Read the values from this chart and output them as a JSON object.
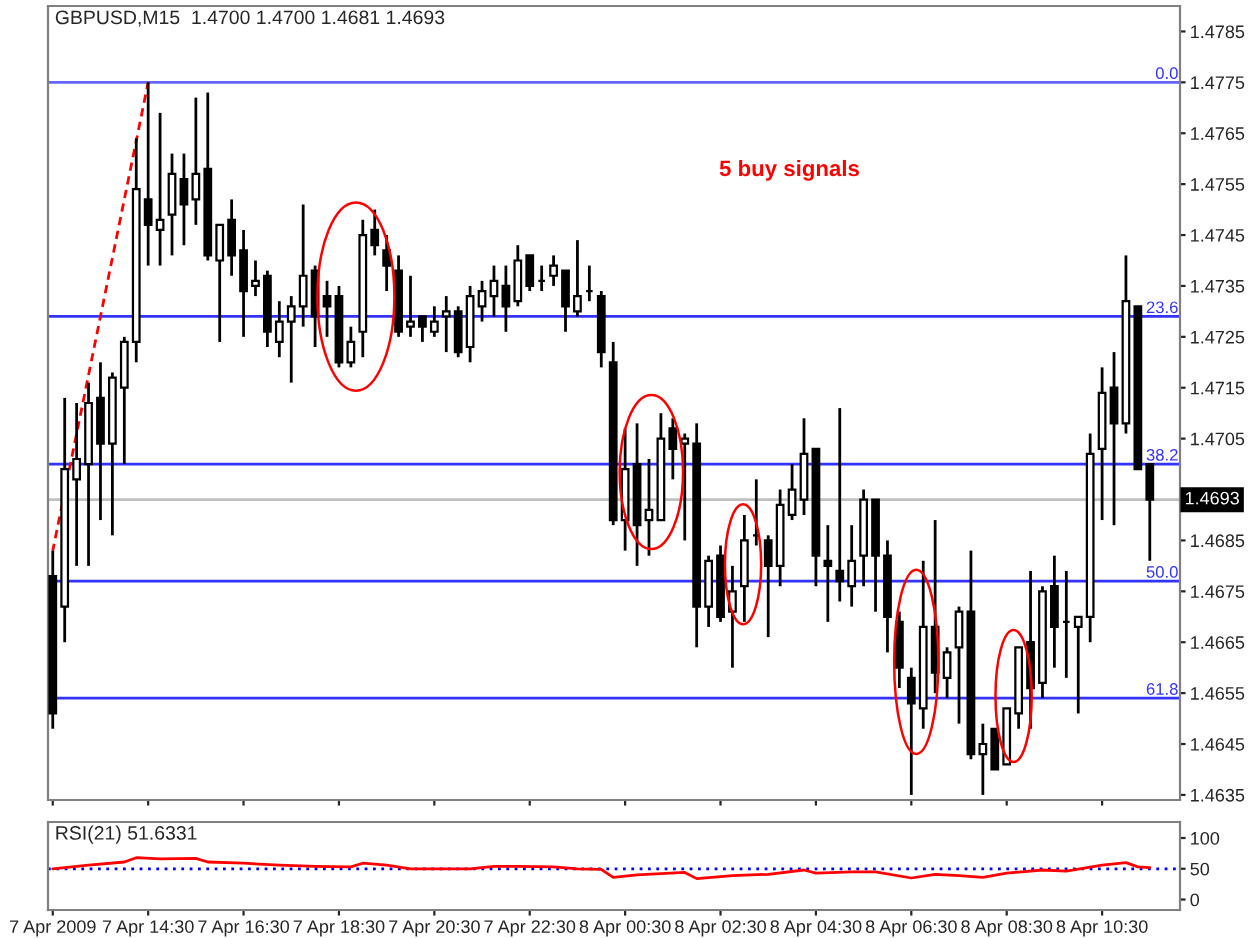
{
  "chart_data": [
    {
      "type": "candlestick",
      "title": "GBPUSD,M15  1.4700 1.4700 1.4681 1.4693",
      "x": [
        "2009-04-07T12:30",
        "2009-04-07T12:45",
        "2009-04-07T13:00",
        "2009-04-07T13:15",
        "2009-04-07T13:30",
        "2009-04-07T13:45",
        "2009-04-07T14:00",
        "2009-04-07T14:15",
        "2009-04-07T14:30",
        "2009-04-07T14:45",
        "2009-04-07T15:00",
        "2009-04-07T15:15",
        "2009-04-07T15:30",
        "2009-04-07T15:45",
        "2009-04-07T16:00",
        "2009-04-07T16:15",
        "2009-04-07T16:30",
        "2009-04-07T16:45",
        "2009-04-07T17:00",
        "2009-04-07T17:15",
        "2009-04-07T17:30",
        "2009-04-07T17:45",
        "2009-04-07T18:00",
        "2009-04-07T18:15",
        "2009-04-07T18:30",
        "2009-04-07T18:45",
        "2009-04-07T19:00",
        "2009-04-07T19:15",
        "2009-04-07T19:30",
        "2009-04-07T19:45",
        "2009-04-07T20:00",
        "2009-04-07T20:15",
        "2009-04-07T20:30",
        "2009-04-07T20:45",
        "2009-04-07T21:00",
        "2009-04-07T21:15",
        "2009-04-07T21:30",
        "2009-04-07T21:45",
        "2009-04-07T22:00",
        "2009-04-07T22:15",
        "2009-04-07T22:30",
        "2009-04-07T22:45",
        "2009-04-07T23:00",
        "2009-04-07T23:15",
        "2009-04-07T23:30",
        "2009-04-07T23:45",
        "2009-04-08T00:00",
        "2009-04-08T00:15",
        "2009-04-08T00:30",
        "2009-04-08T00:45",
        "2009-04-08T01:00",
        "2009-04-08T01:15",
        "2009-04-08T01:30",
        "2009-04-08T01:45",
        "2009-04-08T02:00",
        "2009-04-08T02:15",
        "2009-04-08T02:30",
        "2009-04-08T02:45",
        "2009-04-08T03:00",
        "2009-04-08T03:15",
        "2009-04-08T03:30",
        "2009-04-08T03:45",
        "2009-04-08T04:00",
        "2009-04-08T04:15",
        "2009-04-08T04:30",
        "2009-04-08T04:45",
        "2009-04-08T05:00",
        "2009-04-08T05:15",
        "2009-04-08T05:30",
        "2009-04-08T05:45",
        "2009-04-08T06:00",
        "2009-04-08T06:15",
        "2009-04-08T06:30",
        "2009-04-08T06:45",
        "2009-04-08T07:00",
        "2009-04-08T07:15",
        "2009-04-08T07:30",
        "2009-04-08T07:45",
        "2009-04-08T08:00",
        "2009-04-08T08:15",
        "2009-04-08T08:30",
        "2009-04-08T08:45",
        "2009-04-08T09:00",
        "2009-04-08T09:15",
        "2009-04-08T09:30",
        "2009-04-08T09:45",
        "2009-04-08T10:00",
        "2009-04-08T10:15",
        "2009-04-08T10:30",
        "2009-04-08T10:45",
        "2009-04-08T11:00",
        "2009-04-08T11:15",
        "2009-04-08T11:30"
      ],
      "ohlc": [
        [
          1.4678,
          1.4683,
          1.4648,
          1.4651
        ],
        [
          1.4672,
          1.4713,
          1.4665,
          1.4699
        ],
        [
          1.4697,
          1.4712,
          1.468,
          1.4701
        ],
        [
          1.47,
          1.4716,
          1.468,
          1.4712
        ],
        [
          1.4713,
          1.472,
          1.4689,
          1.4704
        ],
        [
          1.4704,
          1.4718,
          1.4686,
          1.4717
        ],
        [
          1.4715,
          1.4725,
          1.47,
          1.4724
        ],
        [
          1.4724,
          1.4764,
          1.472,
          1.4754
        ],
        [
          1.4752,
          1.4775,
          1.4739,
          1.4747
        ],
        [
          1.4746,
          1.4769,
          1.4739,
          1.4748
        ],
        [
          1.4749,
          1.4761,
          1.4741,
          1.4757
        ],
        [
          1.4756,
          1.4761,
          1.4743,
          1.4751
        ],
        [
          1.4752,
          1.4772,
          1.4747,
          1.4757
        ],
        [
          1.4758,
          1.4773,
          1.474,
          1.4741
        ],
        [
          1.474,
          1.4747,
          1.4724,
          1.4747
        ],
        [
          1.4748,
          1.4752,
          1.4737,
          1.4741
        ],
        [
          1.4742,
          1.4746,
          1.4725,
          1.4734
        ],
        [
          1.4735,
          1.474,
          1.4733,
          1.4736
        ],
        [
          1.4737,
          1.4738,
          1.4723,
          1.4726
        ],
        [
          1.4724,
          1.4732,
          1.4721,
          1.4728
        ],
        [
          1.4728,
          1.4733,
          1.4716,
          1.4731
        ],
        [
          1.4731,
          1.4751,
          1.4727,
          1.4737
        ],
        [
          1.4738,
          1.4739,
          1.4723,
          1.4729
        ],
        [
          1.4733,
          1.4736,
          1.4725,
          1.4731
        ],
        [
          1.4733,
          1.4735,
          1.4719,
          1.472
        ],
        [
          1.472,
          1.4727,
          1.4719,
          1.4724
        ],
        [
          1.4726,
          1.4748,
          1.4721,
          1.4745
        ],
        [
          1.4746,
          1.475,
          1.4741,
          1.4743
        ],
        [
          1.4742,
          1.4745,
          1.4734,
          1.4739
        ],
        [
          1.4738,
          1.4741,
          1.4725,
          1.4726
        ],
        [
          1.4727,
          1.4737,
          1.4725,
          1.4728
        ],
        [
          1.4729,
          1.4729,
          1.4724,
          1.4727
        ],
        [
          1.4726,
          1.4731,
          1.4725,
          1.4728
        ],
        [
          1.4729,
          1.4733,
          1.4722,
          1.473
        ],
        [
          1.473,
          1.4731,
          1.4721,
          1.4722
        ],
        [
          1.4723,
          1.4735,
          1.472,
          1.4733
        ],
        [
          1.4731,
          1.4736,
          1.4728,
          1.4734
        ],
        [
          1.4733,
          1.4739,
          1.4729,
          1.4736
        ],
        [
          1.4735,
          1.4739,
          1.4726,
          1.4731
        ],
        [
          1.4732,
          1.4743,
          1.4731,
          1.474
        ],
        [
          1.4741,
          1.4741,
          1.4734,
          1.4735
        ],
        [
          1.4736,
          1.4739,
          1.4734,
          1.4736
        ],
        [
          1.4737,
          1.4741,
          1.4735,
          1.4739
        ],
        [
          1.4738,
          1.4738,
          1.4726,
          1.4731
        ],
        [
          1.473,
          1.4744,
          1.4729,
          1.4733
        ],
        [
          1.4734,
          1.4739,
          1.4732,
          1.4734
        ],
        [
          1.4733,
          1.4734,
          1.4719,
          1.4722
        ],
        [
          1.472,
          1.4724,
          1.4688,
          1.4689
        ],
        [
          1.4689,
          1.4707,
          1.4683,
          1.4699
        ],
        [
          1.47,
          1.4708,
          1.468,
          1.4688
        ],
        [
          1.4689,
          1.4701,
          1.4682,
          1.4691
        ],
        [
          1.4689,
          1.471,
          1.4689,
          1.4705
        ],
        [
          1.4707,
          1.4709,
          1.4697,
          1.4703
        ],
        [
          1.4704,
          1.4706,
          1.4685,
          1.4705
        ],
        [
          1.4704,
          1.4708,
          1.4664,
          1.4672
        ],
        [
          1.4672,
          1.4682,
          1.4668,
          1.4681
        ],
        [
          1.4682,
          1.4684,
          1.4669,
          1.467
        ],
        [
          1.4671,
          1.468,
          1.466,
          1.4675
        ],
        [
          1.4676,
          1.469,
          1.4669,
          1.4685
        ],
        [
          1.4686,
          1.4697,
          1.4684,
          1.4686
        ],
        [
          1.4685,
          1.4686,
          1.4666,
          1.468
        ],
        [
          1.468,
          1.4695,
          1.4676,
          1.4692
        ],
        [
          1.469,
          1.47,
          1.4689,
          1.4695
        ],
        [
          1.4693,
          1.4709,
          1.469,
          1.4702
        ],
        [
          1.4703,
          1.4703,
          1.4676,
          1.4682
        ],
        [
          1.4681,
          1.4688,
          1.4669,
          1.468
        ],
        [
          1.4679,
          1.4711,
          1.4673,
          1.4677
        ],
        [
          1.4676,
          1.4688,
          1.4672,
          1.4681
        ],
        [
          1.4682,
          1.4695,
          1.4676,
          1.4693
        ],
        [
          1.4693,
          1.4693,
          1.4671,
          1.4682
        ],
        [
          1.4682,
          1.4685,
          1.4663,
          1.467
        ],
        [
          1.4669,
          1.4671,
          1.4656,
          1.466
        ],
        [
          1.4658,
          1.466,
          1.4635,
          1.4653
        ],
        [
          1.4652,
          1.4681,
          1.4648,
          1.4668
        ],
        [
          1.4668,
          1.4689,
          1.4655,
          1.4659
        ],
        [
          1.4658,
          1.4664,
          1.4654,
          1.4663
        ],
        [
          1.4664,
          1.4672,
          1.4649,
          1.4671
        ],
        [
          1.4671,
          1.4683,
          1.4642,
          1.4643
        ],
        [
          1.4643,
          1.4649,
          1.4635,
          1.4645
        ],
        [
          1.4648,
          1.4648,
          1.464,
          1.464
        ],
        [
          1.4641,
          1.4652,
          1.4641,
          1.4652
        ],
        [
          1.4651,
          1.4664,
          1.4648,
          1.4664
        ],
        [
          1.4665,
          1.4679,
          1.4648,
          1.4656
        ],
        [
          1.4657,
          1.4676,
          1.4654,
          1.4675
        ],
        [
          1.4676,
          1.4682,
          1.466,
          1.4668
        ],
        [
          1.4669,
          1.4679,
          1.4658,
          1.4669
        ],
        [
          1.4668,
          1.467,
          1.4651,
          1.467
        ],
        [
          1.467,
          1.4706,
          1.4665,
          1.4702
        ],
        [
          1.4703,
          1.4719,
          1.4689,
          1.4714
        ],
        [
          1.4715,
          1.4722,
          1.4688,
          1.4708
        ],
        [
          1.4708,
          1.4741,
          1.4706,
          1.4732
        ],
        [
          1.4731,
          1.4731,
          1.4699,
          1.4699
        ],
        [
          1.47,
          1.47,
          1.4681,
          1.4693
        ]
      ],
      "series": [
        {
          "type": "line",
          "color": "#ff0000",
          "line_style": "dashed",
          "x": [
            "2009-04-07T12:30",
            "2009-04-07T14:30"
          ],
          "values": [
            1.4683,
            1.4775
          ]
        }
      ],
      "ref_lines": [
        {
          "axis": "y",
          "value": 1.4775,
          "color": "#6666ff"
        },
        {
          "axis": "y",
          "value": 1.4729,
          "color": "#3333ff"
        },
        {
          "axis": "y",
          "value": 1.47,
          "color": "#3333ff"
        },
        {
          "axis": "y",
          "value": 1.4677,
          "color": "#3333ff"
        },
        {
          "axis": "y",
          "value": 1.4654,
          "color": "#3333ff"
        },
        {
          "axis": "y",
          "value": 1.4693,
          "label": "1.4693",
          "color": "#c0c0c0"
        }
      ],
      "annotations": [
        "5 buy signals",
        {
          "text": "0.0",
          "x": "2009-04-08T12:06",
          "y": 1.4775
        },
        {
          "text": "23.6",
          "x": "2009-04-08T12:06",
          "y": 1.4729
        },
        {
          "text": "38.2",
          "x": "2009-04-08T12:06",
          "y": 1.47
        },
        {
          "text": "50.0",
          "x": "2009-04-08T12:06",
          "y": 1.4677
        },
        {
          "text": "61.8",
          "x": "2009-04-08T12:06",
          "y": 1.4654
        }
      ],
      "xlim": [
        "2009-04-07T12:24",
        "2009-04-08T12:08"
      ],
      "xticks": [
        {
          "value": "2009-04-07T12:30",
          "label": null
        },
        {
          "value": "2009-04-07T14:30",
          "label": null
        },
        {
          "value": "2009-04-07T16:30",
          "label": null
        },
        {
          "value": "2009-04-07T18:30",
          "label": null
        },
        {
          "value": "2009-04-07T20:30",
          "label": null
        },
        {
          "value": "2009-04-07T22:30",
          "label": null
        },
        {
          "value": "2009-04-08T00:30",
          "label": null
        },
        {
          "value": "2009-04-08T02:30",
          "label": null
        },
        {
          "value": "2009-04-08T04:30",
          "label": null
        },
        {
          "value": "2009-04-08T06:30",
          "label": null
        },
        {
          "value": "2009-04-08T08:30",
          "label": null
        },
        {
          "value": "2009-04-08T10:30",
          "label": null
        }
      ],
      "ylim": [
        1.4634,
        1.479
      ],
      "yticks": [
        1.4635,
        1.4645,
        1.4655,
        1.4665,
        1.4675,
        1.4685,
        {
          "value": 1.4695,
          "label": null
        },
        1.4705,
        1.4715,
        1.4725,
        1.4735,
        1.4745,
        1.4755,
        1.4765,
        1.4775,
        1.4785
      ],
      "tick_labels": "y"
    },
    {
      "type": "line",
      "title": "RSI(21) 51.6331",
      "series": [
        {
          "color": "#ff0000",
          "x": [
            "2009-04-07T12:30",
            "2009-04-07T13:15",
            "2009-04-07T14:00",
            "2009-04-07T14:15",
            "2009-04-07T14:45",
            "2009-04-07T15:30",
            "2009-04-07T15:45",
            "2009-04-07T16:30",
            "2009-04-07T17:15",
            "2009-04-07T18:00",
            "2009-04-07T18:45",
            "2009-04-07T19:00",
            "2009-04-07T19:30",
            "2009-04-07T20:00",
            "2009-04-07T21:15",
            "2009-04-07T21:45",
            "2009-04-07T22:15",
            "2009-04-07T23:00",
            "2009-04-07T23:30",
            "2009-04-08T00:00",
            "2009-04-08T00:15",
            "2009-04-08T00:45",
            "2009-04-08T01:45",
            "2009-04-08T02:00",
            "2009-04-08T02:45",
            "2009-04-08T03:30",
            "2009-04-08T04:15",
            "2009-04-08T04:30",
            "2009-04-08T05:15",
            "2009-04-08T05:45",
            "2009-04-08T06:30",
            "2009-04-08T07:00",
            "2009-04-08T07:30",
            "2009-04-08T08:00",
            "2009-04-08T08:30",
            "2009-04-08T09:15",
            "2009-04-08T09:45",
            "2009-04-08T10:30",
            "2009-04-08T11:00",
            "2009-04-08T11:15",
            "2009-04-08T11:30"
          ],
          "values": [
            50,
            56,
            61,
            68,
            66,
            67,
            61,
            59,
            56,
            54,
            53,
            59,
            56,
            50,
            50,
            54,
            54,
            53,
            50,
            49,
            36,
            40,
            44,
            34,
            39,
            41,
            48,
            43,
            45,
            45,
            35,
            41,
            39,
            36,
            43,
            48,
            46,
            56,
            60,
            53,
            52
          ]
        }
      ],
      "ref_lines": [
        {
          "axis": "y",
          "value": 50,
          "color": "#0000ff",
          "line_style": "dotted"
        }
      ],
      "xlim": [
        "2009-04-07T12:24",
        "2009-04-08T12:08"
      ],
      "xticks": [
        {
          "value": "2009-04-07T12:30",
          "label": "7 Apr 2009"
        },
        {
          "value": "2009-04-07T14:30",
          "label": "7 Apr 14:30"
        },
        {
          "value": "2009-04-07T16:30",
          "label": "7 Apr 16:30"
        },
        {
          "value": "2009-04-07T18:30",
          "label": "7 Apr 18:30"
        },
        {
          "value": "2009-04-07T20:30",
          "label": "7 Apr 20:30"
        },
        {
          "value": "2009-04-07T22:30",
          "label": "7 Apr 22:30"
        },
        {
          "value": "2009-04-08T00:30",
          "label": "8 Apr 00:30"
        },
        {
          "value": "2009-04-08T02:30",
          "label": "8 Apr 02:30"
        },
        {
          "value": "2009-04-08T04:30",
          "label": "8 Apr 04:30"
        },
        {
          "value": "2009-04-08T06:30",
          "label": "8 Apr 06:30"
        },
        {
          "value": "2009-04-08T08:30",
          "label": "8 Apr 08:30"
        },
        {
          "value": "2009-04-08T10:30",
          "label": "8 Apr 10:30"
        }
      ],
      "ylim": [
        -17,
        126
      ],
      "yticks": [
        0,
        50,
        100
      ]
    }
  ]
}
